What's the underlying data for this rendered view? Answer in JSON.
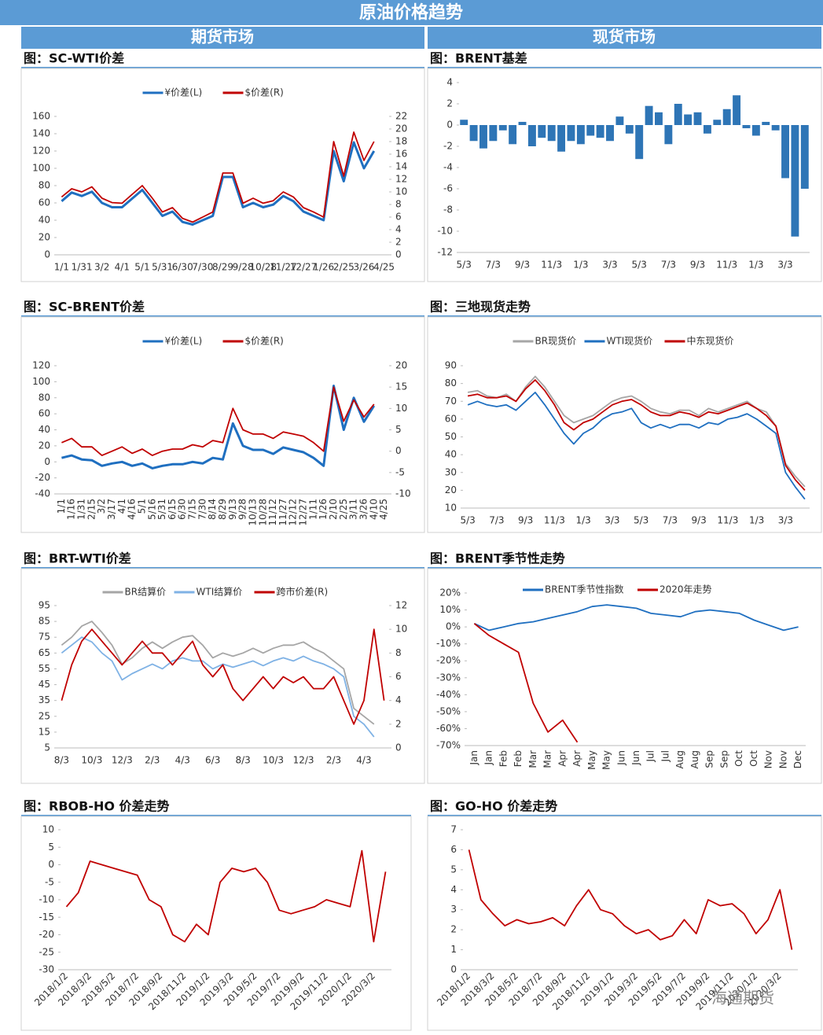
{
  "header": {
    "title": "原油价格趋势",
    "left": "期货市场",
    "right": "现货市场",
    "watermark": "海通期货"
  },
  "chart_data": [
    {
      "type": "line",
      "title": "图：SC-WTI价差",
      "legend": "top",
      "categories": [
        "1/1",
        null,
        "1/31",
        null,
        "3/2",
        null,
        "4/1",
        null,
        "5/1",
        null,
        "5/31",
        null,
        "6/30",
        null,
        "7/30",
        null,
        "8/29",
        null,
        "9/28",
        null,
        "10/28",
        null,
        "11/27",
        null,
        "12/27",
        null,
        "1/26",
        null,
        "2/25",
        null,
        "3/26",
        null,
        "4/25"
      ],
      "series": [
        {
          "name": "¥价差(L)",
          "color": "#1f6fc0",
          "values": [
            62,
            72,
            68,
            73,
            60,
            55,
            55,
            65,
            75,
            60,
            45,
            50,
            38,
            35,
            40,
            45,
            90,
            90,
            55,
            60,
            55,
            58,
            68,
            62,
            50,
            45,
            40,
            120,
            85,
            130,
            100,
            120,
            null
          ]
        },
        {
          "name": "$价差(R)",
          "color": "#c00000",
          "axis": "y2",
          "values": [
            9.2,
            10.5,
            10,
            10.8,
            9,
            8.3,
            8.2,
            9.6,
            11,
            9,
            6.8,
            7.5,
            5.8,
            5.2,
            6,
            6.8,
            13,
            13,
            8.2,
            9,
            8.2,
            8.6,
            10,
            9.2,
            7.5,
            6.8,
            6,
            18,
            12.5,
            19.5,
            15,
            18,
            null
          ]
        }
      ],
      "ylim": [
        0,
        160
      ],
      "yticks": [
        0,
        20,
        40,
        60,
        80,
        100,
        120,
        140,
        160
      ],
      "y2lim": [
        0,
        22
      ],
      "y2ticks": [
        0,
        2,
        4,
        6,
        8,
        10,
        12,
        14,
        16,
        18,
        20,
        22
      ]
    },
    {
      "type": "bar",
      "title": "图：BRENT基差",
      "color": "#2e75b6",
      "categories": [
        "5/3",
        null,
        null,
        "7/3",
        null,
        null,
        "9/3",
        null,
        null,
        "11/3",
        null,
        null,
        "1/3",
        null,
        null,
        "3/3",
        null,
        null,
        "5/3",
        null,
        null,
        "7/3",
        null,
        null,
        "9/3",
        null,
        null,
        "11/3",
        null,
        null,
        "1/3",
        null,
        null,
        "3/3",
        null,
        null
      ],
      "values": [
        0.5,
        -1.5,
        -2.2,
        -1.5,
        -0.5,
        -1.8,
        0.3,
        -2.0,
        -1.2,
        -1.5,
        -2.5,
        -1.5,
        -1.8,
        -1.0,
        -1.2,
        -1.5,
        0.8,
        -0.8,
        -3.2,
        1.8,
        1.2,
        -1.8,
        2.0,
        1.0,
        1.2,
        -0.8,
        0.5,
        1.5,
        2.8,
        -0.3,
        -1.0,
        0.3,
        -0.5,
        -5.0,
        -10.5,
        -6.0
      ],
      "ylim": [
        -12,
        4
      ],
      "yticks": [
        -12,
        -10,
        -8,
        -6,
        -4,
        -2,
        0,
        2,
        4
      ]
    },
    {
      "type": "line",
      "title": "图：SC-BRENT价差",
      "legend": "top",
      "categories": [
        "1/1",
        "1/16",
        "1/31",
        "2/15",
        "3/2",
        "3/17",
        "4/1",
        "4/16",
        "5/1",
        "5/16",
        "5/31",
        "6/15",
        "6/30",
        "7/15",
        "7/30",
        "8/14",
        "8/29",
        "9/13",
        "9/28",
        "10/13",
        "10/28",
        "11/12",
        "11/27",
        "12/12",
        "12/27",
        "1/11",
        "1/26",
        "2/10",
        "2/25",
        "3/11",
        "3/26",
        "4/10",
        "4/25"
      ],
      "series": [
        {
          "name": "¥价差(L)",
          "color": "#1f6fc0",
          "values": [
            5,
            8,
            3,
            2,
            -5,
            -2,
            0,
            -5,
            -2,
            -8,
            -5,
            -3,
            -3,
            0,
            -2,
            5,
            3,
            48,
            20,
            15,
            15,
            10,
            18,
            15,
            12,
            5,
            -5,
            95,
            40,
            80,
            50,
            70,
            null
          ]
        },
        {
          "name": "$价差(R)",
          "color": "#c00000",
          "axis": "y2",
          "values": [
            2,
            3,
            1,
            1,
            -1,
            0,
            1,
            -0.5,
            0.5,
            -1,
            0,
            0.5,
            0.5,
            1.5,
            1,
            2.5,
            2,
            10,
            5,
            4,
            4,
            3,
            4.5,
            4,
            3.5,
            2,
            0,
            15,
            7,
            12,
            8,
            11,
            null
          ]
        }
      ],
      "ylim": [
        -40,
        120
      ],
      "yticks": [
        -40,
        -20,
        0,
        20,
        40,
        60,
        80,
        100,
        120
      ],
      "y2lim": [
        -10,
        20
      ],
      "y2ticks": [
        -10,
        -5,
        0,
        5,
        10,
        15,
        20
      ]
    },
    {
      "type": "line",
      "title": "图：三地现货走势",
      "legend": "top",
      "categories": [
        "5/3",
        null,
        null,
        "7/3",
        null,
        null,
        "9/3",
        null,
        null,
        "11/3",
        null,
        null,
        "1/3",
        null,
        null,
        "3/3",
        null,
        null,
        "5/3",
        null,
        null,
        "7/3",
        null,
        null,
        "9/3",
        null,
        null,
        "11/3",
        null,
        null,
        "1/3",
        null,
        null,
        "3/3",
        null,
        null
      ],
      "series": [
        {
          "name": "BR现货价",
          "color": "#a6a6a6",
          "values": [
            75,
            76,
            73,
            72,
            74,
            70,
            78,
            84,
            78,
            70,
            62,
            58,
            60,
            62,
            66,
            70,
            72,
            73,
            70,
            66,
            64,
            63,
            65,
            65,
            62,
            66,
            64,
            66,
            68,
            70,
            66,
            64,
            56,
            35,
            28,
            22
          ]
        },
        {
          "name": "WTI现货价",
          "color": "#1f6fc0",
          "values": [
            68,
            70,
            68,
            67,
            68,
            65,
            70,
            75,
            68,
            60,
            52,
            46,
            52,
            55,
            60,
            63,
            64,
            66,
            58,
            55,
            57,
            55,
            57,
            57,
            55,
            58,
            57,
            60,
            61,
            63,
            60,
            56,
            52,
            30,
            22,
            15
          ]
        },
        {
          "name": "中东现货价",
          "color": "#c00000",
          "values": [
            73,
            74,
            72,
            72,
            73,
            70,
            77,
            82,
            76,
            68,
            58,
            54,
            58,
            60,
            64,
            68,
            70,
            71,
            68,
            64,
            62,
            62,
            64,
            63,
            61,
            64,
            63,
            65,
            67,
            69,
            66,
            62,
            56,
            34,
            26,
            20
          ]
        }
      ],
      "ylim": [
        10,
        90
      ],
      "yticks": [
        10,
        20,
        30,
        40,
        50,
        60,
        70,
        80,
        90
      ]
    },
    {
      "type": "line",
      "title": "图：BRT-WTI价差",
      "legend": "top",
      "categories": [
        "8/3",
        null,
        null,
        "10/3",
        null,
        null,
        "12/3",
        null,
        null,
        "2/3",
        null,
        null,
        "4/3",
        null,
        null,
        "6/3",
        null,
        null,
        "8/3",
        null,
        null,
        "10/3",
        null,
        null,
        "12/3",
        null,
        null,
        "2/3",
        null,
        null,
        "4/3",
        null,
        null
      ],
      "series": [
        {
          "name": "BR结算价",
          "color": "#a6a6a6",
          "values": [
            70,
            75,
            82,
            85,
            78,
            70,
            58,
            62,
            68,
            72,
            68,
            72,
            75,
            76,
            70,
            62,
            65,
            63,
            65,
            68,
            65,
            68,
            70,
            70,
            72,
            68,
            65,
            60,
            55,
            30,
            25,
            20,
            null
          ]
        },
        {
          "name": "WTI结算价",
          "color": "#7fb2e5",
          "values": [
            65,
            70,
            75,
            72,
            65,
            60,
            48,
            52,
            55,
            58,
            55,
            60,
            62,
            60,
            60,
            55,
            58,
            56,
            58,
            60,
            57,
            60,
            62,
            60,
            63,
            60,
            58,
            55,
            50,
            25,
            20,
            12,
            null
          ]
        },
        {
          "name": "跨市价差(R)",
          "color": "#c00000",
          "axis": "y2",
          "values": [
            4,
            7,
            9,
            10,
            9,
            8,
            7,
            8,
            9,
            8,
            8,
            7,
            8,
            9,
            7,
            6,
            7,
            5,
            4,
            5,
            6,
            5,
            6,
            5.5,
            6,
            5,
            5,
            6,
            4,
            2,
            4,
            10,
            4
          ]
        }
      ],
      "ylim": [
        5,
        95
      ],
      "yticks": [
        5,
        15,
        25,
        35,
        45,
        55,
        65,
        75,
        85,
        95
      ],
      "y2lim": [
        0,
        12
      ],
      "y2ticks": [
        0,
        2,
        4,
        6,
        8,
        10,
        12
      ]
    },
    {
      "type": "line",
      "title": "图：BRENT季节性走势",
      "legend": "top",
      "categories": [
        "Jan",
        "Jan",
        "Feb",
        "Feb",
        "Mar",
        "Mar",
        "Apr",
        "Apr",
        "May",
        "May",
        "Jun",
        "Jun",
        "Jul",
        "Jul",
        "Aug",
        "Aug",
        "Sep",
        "Sep",
        "Oct",
        "Oct",
        "Nov",
        "Nov",
        "Dec"
      ],
      "series": [
        {
          "name": "BRENT季节性指数",
          "color": "#1f6fc0",
          "values": [
            2,
            -2,
            0,
            2,
            3,
            5,
            7,
            9,
            12,
            13,
            12,
            11,
            8,
            7,
            6,
            9,
            10,
            9,
            8,
            4,
            1,
            -2,
            0
          ]
        },
        {
          "name": "2020年走势",
          "color": "#c00000",
          "values": [
            2,
            -5,
            -10,
            -15,
            -45,
            -62,
            -55,
            -68,
            null,
            null,
            null,
            null,
            null,
            null,
            null,
            null,
            null,
            null,
            null,
            null,
            null,
            null,
            null
          ]
        }
      ],
      "ylim": [
        -70,
        20
      ],
      "yticks": [
        {
          "value": -70,
          "label": "-70%"
        },
        {
          "value": -60,
          "label": "-60%"
        },
        {
          "value": -50,
          "label": "-50%"
        },
        {
          "value": -40,
          "label": "-40%"
        },
        {
          "value": -30,
          "label": "-30%"
        },
        {
          "value": -20,
          "label": "-20%"
        },
        {
          "value": -10,
          "label": "-10%"
        },
        {
          "value": 0,
          "label": "0%"
        },
        {
          "value": 10,
          "label": "10%"
        },
        {
          "value": 20,
          "label": "20%"
        }
      ]
    },
    {
      "type": "line",
      "title": "图：RBOB-HO 价差走势",
      "color": "#c00000",
      "categories": [
        "2018/1/2",
        null,
        "2018/3/2",
        null,
        "2018/5/2",
        null,
        "2018/7/2",
        null,
        "2018/9/2",
        null,
        "2018/11/2",
        null,
        "2019/1/2",
        null,
        "2019/3/2",
        null,
        "2019/5/2",
        null,
        "2019/7/2",
        null,
        "2019/9/2",
        null,
        "2019/11/2",
        null,
        "2020/1/2",
        null,
        "2020/3/2",
        null
      ],
      "values": [
        -12,
        -8,
        1,
        0,
        -1,
        -2,
        -3,
        -10,
        -12,
        -20,
        -22,
        -17,
        -20,
        -5,
        -1,
        -2,
        -1,
        -5,
        -13,
        -14,
        -13,
        -12,
        -10,
        -11,
        -12,
        4,
        -22,
        -2
      ],
      "ylim": [
        -30,
        10
      ],
      "yticks": [
        -30,
        -25,
        -20,
        -15,
        -10,
        -5,
        0,
        5,
        10
      ]
    },
    {
      "type": "line",
      "title": "图：GO-HO 价差走势",
      "color": "#c00000",
      "categories": [
        "2018/1/2",
        null,
        "2018/3/2",
        null,
        "2018/5/2",
        null,
        "2018/7/2",
        null,
        "2018/9/2",
        null,
        "2018/11/2",
        null,
        "2019/1/2",
        null,
        "2019/3/2",
        null,
        "2019/5/2",
        null,
        "2019/7/2",
        null,
        "2019/9/2",
        null,
        "2019/11/2",
        null,
        "2020/1/2",
        null,
        "2020/3/2",
        null
      ],
      "values": [
        6,
        3.5,
        2.8,
        2.2,
        2.5,
        2.3,
        2.4,
        2.6,
        2.2,
        3.2,
        4,
        3,
        2.8,
        2.2,
        1.8,
        2,
        1.5,
        1.7,
        2.5,
        1.8,
        3.5,
        3.2,
        3.3,
        2.8,
        1.8,
        2.5,
        4,
        1
      ],
      "ylim": [
        0,
        7
      ],
      "yticks": [
        0,
        1,
        2,
        3,
        4,
        5,
        6,
        7
      ]
    }
  ]
}
